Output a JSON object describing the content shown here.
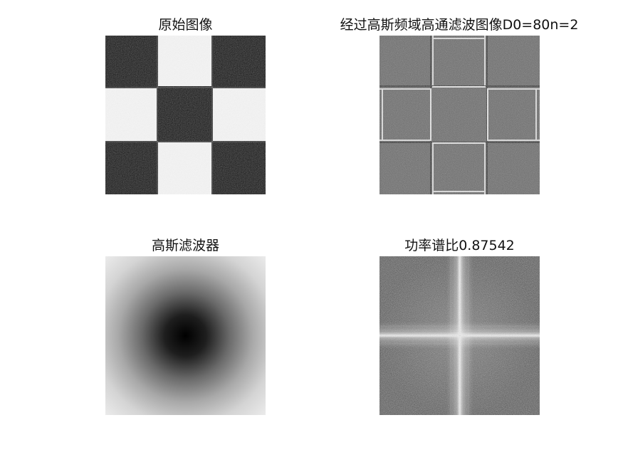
{
  "window": {
    "figure_label": ""
  },
  "panels": {
    "original": {
      "title": "原始图像"
    },
    "highpass": {
      "title": "经过高斯频域高通滤波图像D0=80n=2"
    },
    "filter": {
      "title": "高斯滤波器"
    },
    "spectrum": {
      "title": "功率谱比0.87542"
    }
  },
  "colors": {
    "background": "#ffffff",
    "black": "#000000",
    "white": "#f4f4f4",
    "mid_gray": "#6e6e6e",
    "filter_center": "#000000",
    "filter_edge": "#ececec",
    "spectrum_base": "#5a5a5a",
    "spectrum_cross": "#e6e6e6"
  },
  "icons": {
    "original": "checkerboard-image",
    "highpass": "edge-enhanced-checkerboard-image",
    "filter": "gaussian-radial-gradient-image",
    "spectrum": "power-spectrum-cross-image"
  }
}
